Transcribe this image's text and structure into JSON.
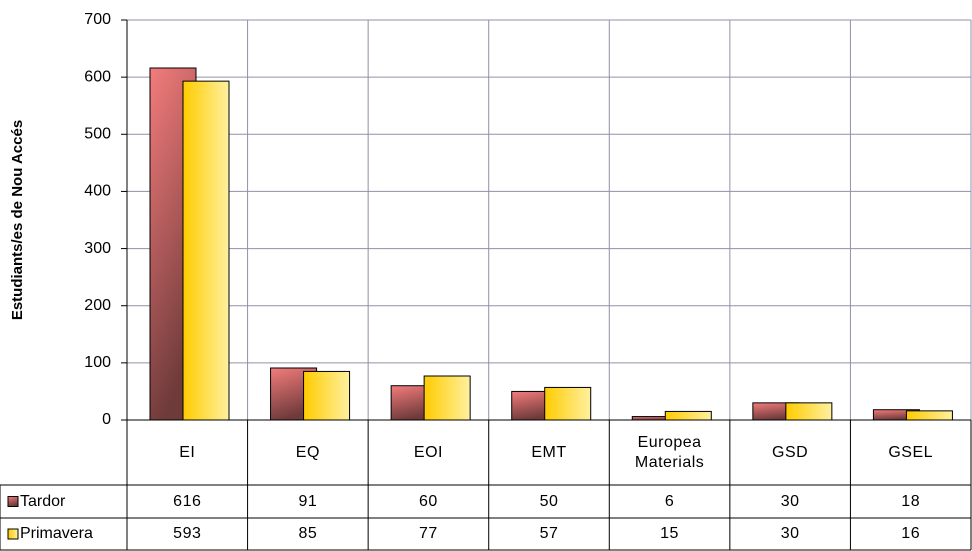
{
  "chart_data": {
    "type": "bar",
    "y_label": "Estudiants/es de Nou Accés",
    "categories": [
      "EI",
      "EQ",
      "EOI",
      "EMT",
      "Europea Materials",
      "GSD",
      "GSEL"
    ],
    "series": [
      {
        "name": "Tardor",
        "color": "#c0504d",
        "values": [
          616,
          91,
          60,
          50,
          6,
          30,
          18
        ]
      },
      {
        "name": "Primavera",
        "color": "#ffcc00",
        "values": [
          593,
          85,
          77,
          57,
          15,
          30,
          16
        ]
      }
    ],
    "ylim": [
      0,
      700
    ],
    "yticks": [
      0,
      100,
      200,
      300,
      400,
      500,
      600,
      700
    ],
    "grid": true
  }
}
